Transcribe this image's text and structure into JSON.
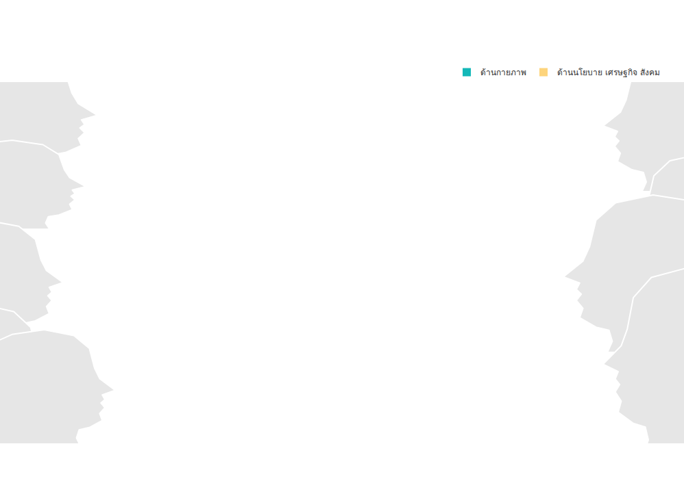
{
  "chart_data": {
    "type": "bar",
    "categories": [],
    "series": [
      {
        "name": "ด้านกายภาพ",
        "color": "#14b8b8",
        "values": []
      },
      {
        "name": "ด้านนโยบาย เศรษฐกิจ สังคม",
        "color": "#fdd47c",
        "values": []
      }
    ],
    "tick_labels": false,
    "legend": "top right"
  }
}
